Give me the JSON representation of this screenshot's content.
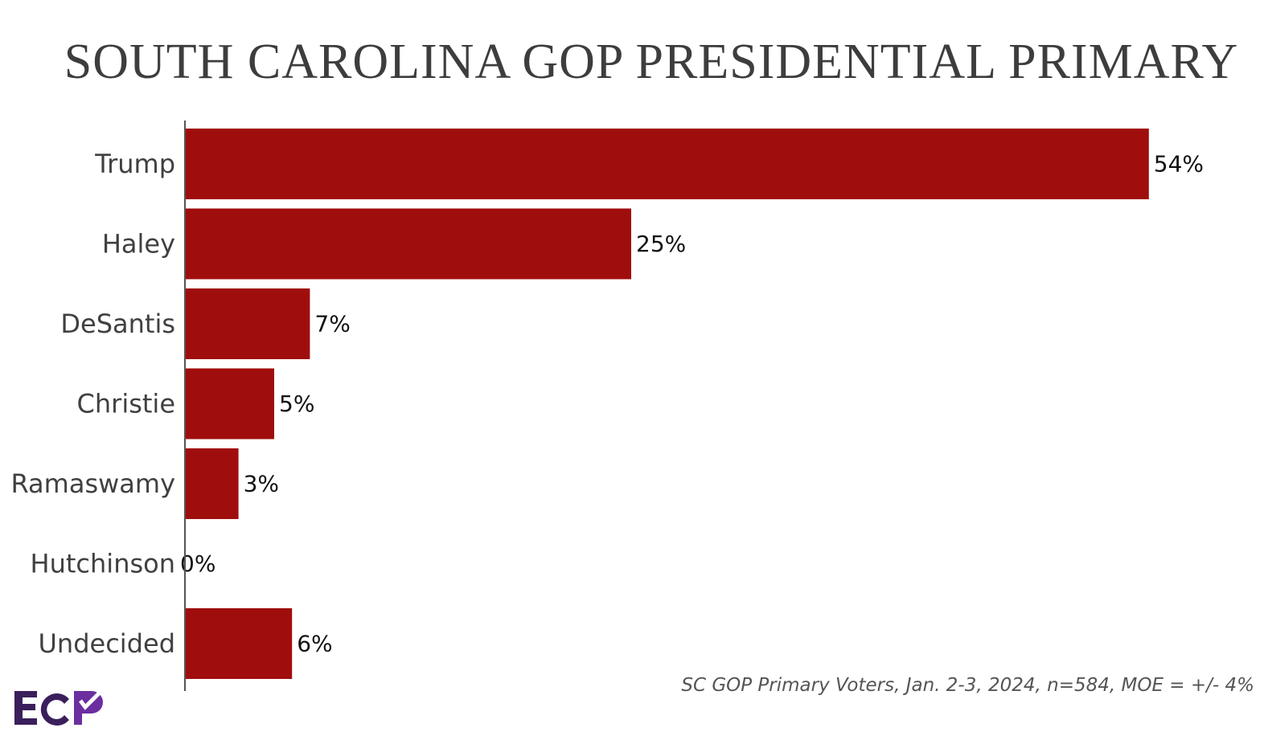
{
  "chart_data": {
    "type": "bar",
    "orientation": "horizontal",
    "title": "SOUTH CAROLINA GOP PRESIDENTIAL PRIMARY",
    "categories": [
      "Trump",
      "Haley",
      "DeSantis",
      "Christie",
      "Ramaswamy",
      "Hutchinson",
      "Undecided"
    ],
    "values": [
      54,
      25,
      7,
      5,
      3,
      0,
      6
    ],
    "value_labels": [
      "54%",
      "25%",
      "7%",
      "5%",
      "3%",
      "0%",
      "6%"
    ],
    "xlim": [
      0,
      60
    ],
    "grid": false,
    "legend": "none",
    "bar_color": "#a00d0d"
  },
  "source_note": "SC GOP Primary Voters, Jan. 2-3, 2024, n=584, MOE = +/- 4%",
  "logo": {
    "text": "ECP",
    "colors": [
      "#3b1f5c",
      "#6b2fa0"
    ]
  }
}
